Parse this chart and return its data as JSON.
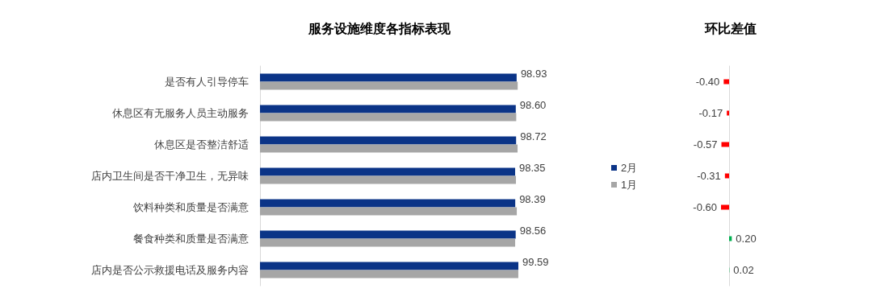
{
  "chart_data": [
    {
      "type": "bar",
      "orientation": "horizontal",
      "title": "服务设施维度各指标表现",
      "categories": [
        "是否有人引导停车",
        "休息区有无服务人员主动服务",
        "休息区是否整洁舒适",
        "店内卫生间是否干净卫生，无异味",
        "饮料种类和质量是否满意",
        "餐食种类和质量是否满意",
        "店内是否公示救援电话及服务内容"
      ],
      "series": [
        {
          "name": "2月",
          "color": "#0b3487",
          "values": [
            98.93,
            98.6,
            98.72,
            98.35,
            98.39,
            98.56,
            99.59
          ],
          "value_labels": [
            "98.93",
            "98.60",
            "98.72",
            "98.35",
            "98.39",
            "98.56",
            "99.59"
          ]
        },
        {
          "name": "1月",
          "color": "#a6a6a6",
          "values": [
            99.33,
            98.77,
            99.29,
            98.66,
            98.99,
            98.36,
            99.57
          ]
        }
      ],
      "legend": "right"
    },
    {
      "type": "bar",
      "orientation": "horizontal",
      "title": "环比差值",
      "categories": [
        null,
        null,
        null,
        null,
        null,
        null,
        null
      ],
      "values": [
        -0.4,
        -0.17,
        -0.57,
        -0.31,
        -0.6,
        0.2,
        0.02
      ],
      "value_labels": [
        "-0.40",
        "-0.17",
        "-0.57",
        "-0.31",
        "-0.60",
        "0.20",
        "0.02"
      ],
      "colors": [
        "#ff0000",
        "#ff0000",
        "#ff0000",
        "#ff0000",
        "#ff0000",
        "#00b050",
        "#00b050"
      ]
    }
  ]
}
